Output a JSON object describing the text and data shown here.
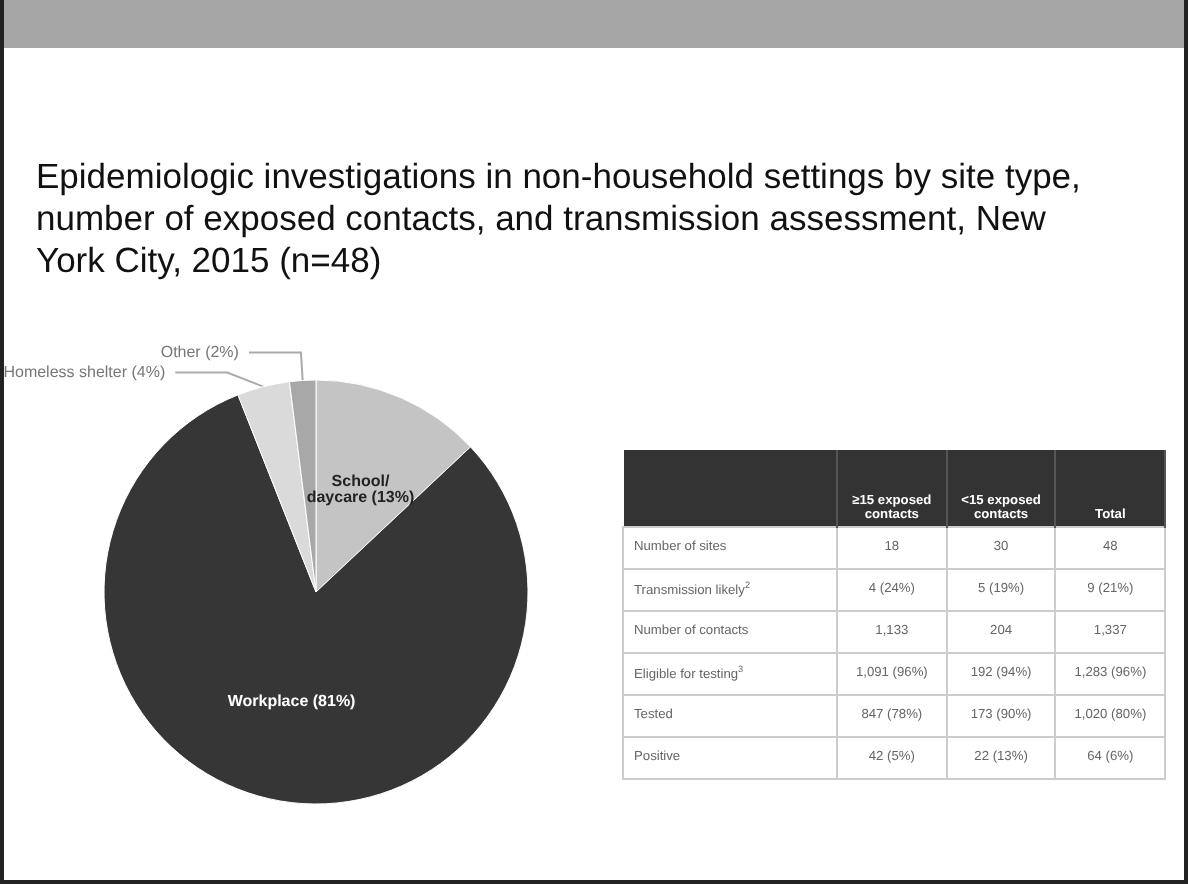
{
  "chart_data": [
    {
      "type": "pie",
      "title": "Epidemiologic investigations in non-household settings by site type, number of exposed contacts, and transmission assessment, New York City, 2015 (n=48)",
      "categories": [
        "School/ daycare (13%)",
        "Workplace (81%)",
        "Homeless shelter (4%)",
        "Other (2%)"
      ],
      "values": [
        13,
        81,
        4,
        2
      ],
      "colors": [
        "#c4c4c4",
        "#363636",
        "#dadada",
        "#a8a8a8"
      ]
    },
    {
      "type": "other",
      "categories": [
        "≥15 exposed contacts",
        "<15 exposed contacts",
        "Total"
      ],
      "y_categories": [
        "Number of sites",
        "Transmission likely$^{2}$",
        "Number of contacts",
        "Eligible for testing$^{3}$",
        "Tested",
        "Positive"
      ],
      "cell_labels": [
        [
          "18",
          "30",
          "48"
        ],
        [
          "4 (24%)",
          "5 (19%)",
          "9 (21%)"
        ],
        [
          "1,133",
          "204",
          "1,337"
        ],
        [
          "1,091 (96%)",
          "192 (94%)",
          "1,283 (96%)"
        ],
        [
          "847 (78%)",
          "173 (90%)",
          "1,020 (80%)"
        ],
        [
          "42 (5%)",
          "22 (13%)",
          "64 (6%)"
        ]
      ]
    }
  ]
}
